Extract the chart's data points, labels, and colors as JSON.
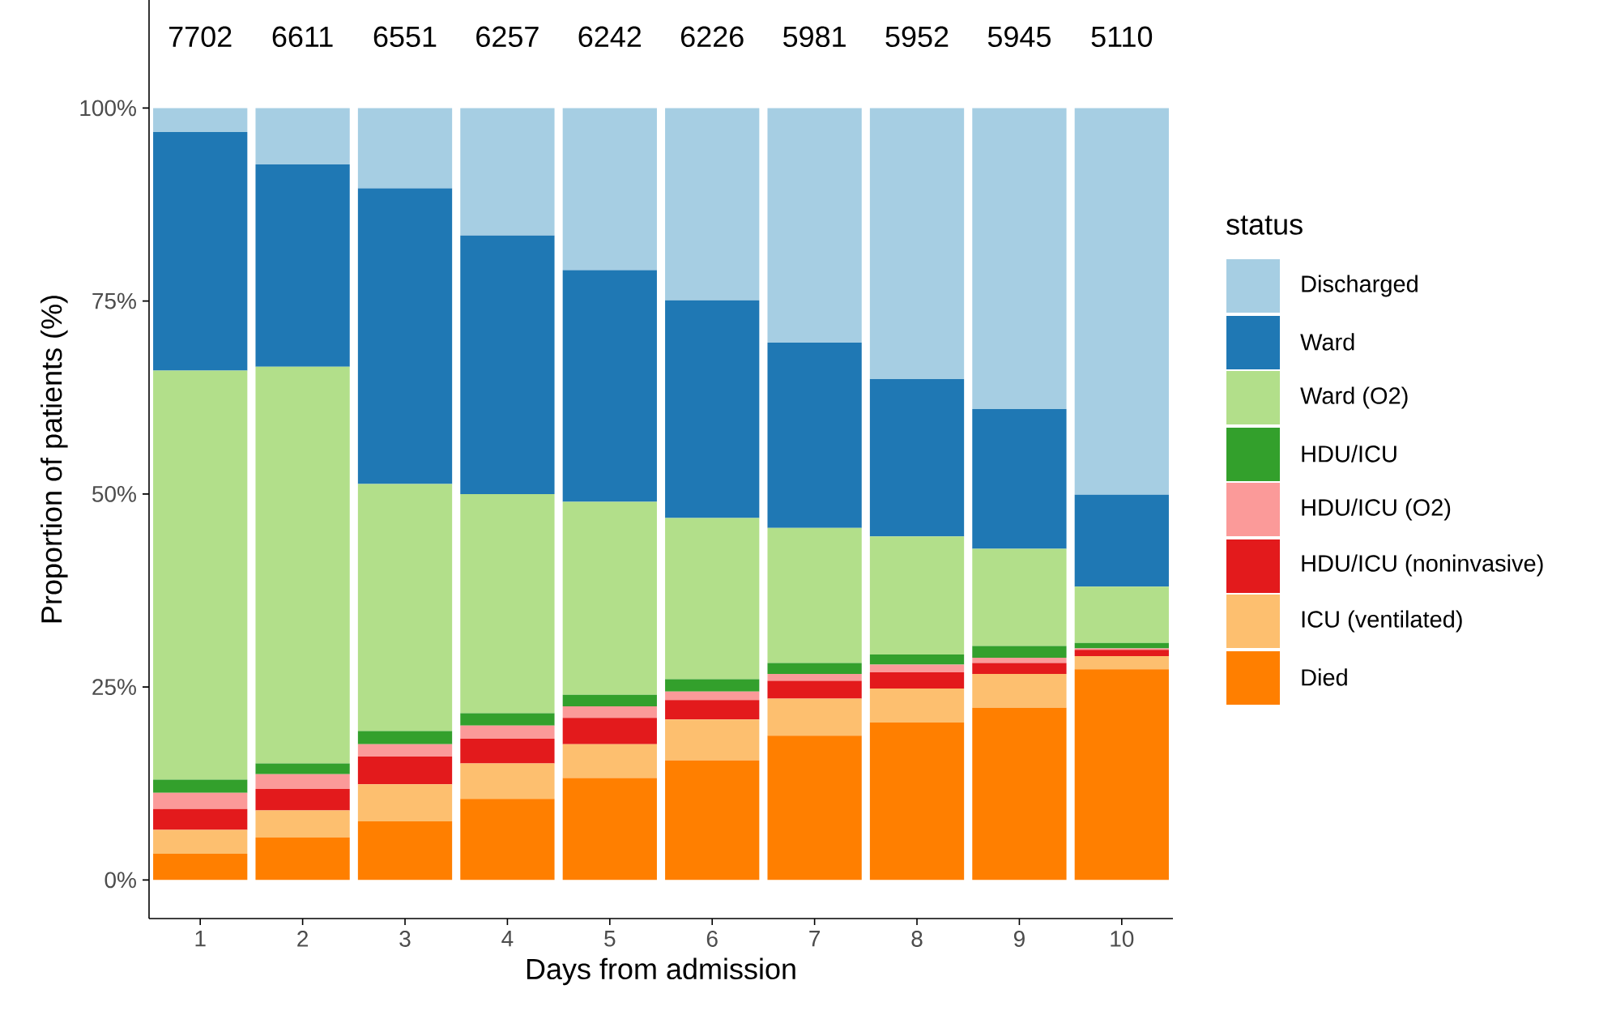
{
  "chart_data": {
    "type": "bar",
    "stacked": true,
    "xlabel": "Days from admission",
    "ylabel": "Proportion of patients (%)",
    "legend_title": "status",
    "legend": "right",
    "grid": false,
    "categories": [
      "1",
      "2",
      "3",
      "4",
      "5",
      "6",
      "7",
      "8",
      "9",
      "10"
    ],
    "ylim": [
      -5,
      114
    ],
    "yticks": [
      {
        "value": 0,
        "label": "0%"
      },
      {
        "value": 25,
        "label": "25%"
      },
      {
        "value": 50,
        "label": "50%"
      },
      {
        "value": 75,
        "label": "75%"
      },
      {
        "value": 100,
        "label": "100%"
      }
    ],
    "annotations": [
      "7702",
      "6611",
      "6551",
      "6257",
      "6242",
      "6226",
      "5981",
      "5952",
      "5945",
      "5110"
    ],
    "series": [
      {
        "name": "Died",
        "color": "#ff7f00",
        "values": [
          3.4,
          5.5,
          7.6,
          10.5,
          13.2,
          15.5,
          18.7,
          20.4,
          22.3,
          27.3
        ]
      },
      {
        "name": "ICU (ventilated)",
        "color": "#fdbf6f",
        "values": [
          3.1,
          3.5,
          4.8,
          4.6,
          4.4,
          5.3,
          4.8,
          4.4,
          4.4,
          1.7
        ]
      },
      {
        "name": "HDU/ICU (noninvasive)",
        "color": "#e31a1c",
        "values": [
          2.7,
          2.8,
          3.6,
          3.2,
          3.4,
          2.5,
          2.3,
          2.1,
          1.4,
          0.8
        ]
      },
      {
        "name": "HDU/ICU (O2)",
        "color": "#fb9a99",
        "values": [
          2.1,
          1.9,
          1.6,
          1.7,
          1.5,
          1.1,
          0.9,
          1.0,
          0.7,
          0.2
        ]
      },
      {
        "name": "HDU/ICU",
        "color": "#33a02c",
        "values": [
          1.7,
          1.4,
          1.7,
          1.6,
          1.5,
          1.6,
          1.4,
          1.3,
          1.5,
          0.7
        ]
      },
      {
        "name": "Ward (O2)",
        "color": "#b2df8a",
        "values": [
          53.0,
          51.4,
          32.0,
          28.4,
          25.0,
          20.9,
          17.5,
          15.3,
          12.6,
          7.3
        ]
      },
      {
        "name": "Ward",
        "color": "#1f78b4",
        "values": [
          30.9,
          26.2,
          38.3,
          33.5,
          30.0,
          28.2,
          24.0,
          20.4,
          18.1,
          11.9
        ]
      },
      {
        "name": "Discharged",
        "color": "#a6cee3",
        "values": [
          3.1,
          7.3,
          10.4,
          16.5,
          21.0,
          24.9,
          30.4,
          35.1,
          39.0,
          50.1
        ]
      }
    ]
  }
}
